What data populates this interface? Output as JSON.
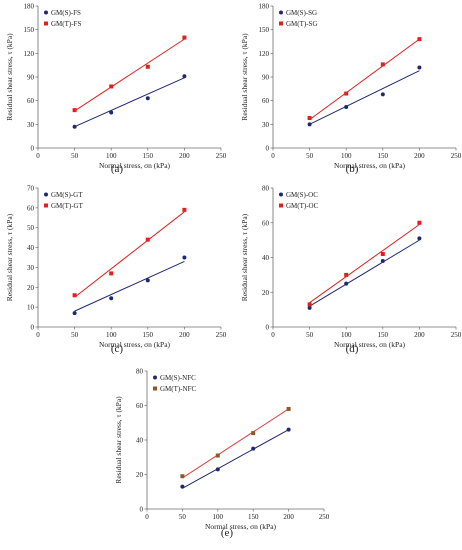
{
  "colors": {
    "gm_s": "#1f2a6e",
    "gm_t": "#e02020",
    "gm_t_nfc": "#8b5a2b",
    "nfc_line": "#e04040",
    "axis": "#6b6b6b"
  },
  "chart_data": [
    {
      "type": "scatter",
      "panel_label": "(a)",
      "xlabel": "Normal stress,  σn (kPa)",
      "ylabel": "Residual shear stress,  τ (kPa)",
      "xlim": [
        0,
        250
      ],
      "ylim": [
        0,
        180
      ],
      "xticks": [
        "0",
        "50",
        "100",
        "150",
        "200",
        "250"
      ],
      "yticks": [
        "0",
        "30",
        "60",
        "90",
        "120",
        "150",
        "180"
      ],
      "legend_position": "top-left",
      "series": [
        {
          "name": "GM(S)-FS",
          "marker": "circle",
          "x": [
            50,
            100,
            150,
            200
          ],
          "y": [
            27,
            45,
            63,
            91
          ],
          "fit": [
            [
              50,
              27
            ],
            [
              200,
              89
            ]
          ]
        },
        {
          "name": "GM(T)-FS",
          "marker": "square",
          "x": [
            50,
            100,
            150,
            200
          ],
          "y": [
            48,
            78,
            103,
            140
          ],
          "fit": [
            [
              50,
              47
            ],
            [
              200,
              138
            ]
          ]
        }
      ]
    },
    {
      "type": "scatter",
      "panel_label": "(b)",
      "xlabel": "Normal stress,  σn (kPa)",
      "ylabel": "Residual shear stress,  τ (kPa)",
      "xlim": [
        0,
        250
      ],
      "ylim": [
        0,
        180
      ],
      "xticks": [
        "0",
        "50",
        "100",
        "150",
        "200",
        "250"
      ],
      "yticks": [
        "0",
        "30",
        "60",
        "90",
        "120",
        "150",
        "180"
      ],
      "legend_position": "top-left",
      "series": [
        {
          "name": "GM(S)-SG",
          "marker": "circle",
          "x": [
            50,
            100,
            150,
            200
          ],
          "y": [
            30,
            52,
            68,
            102
          ],
          "fit": [
            [
              50,
              30
            ],
            [
              200,
              98
            ]
          ]
        },
        {
          "name": "GM(T)-SG",
          "marker": "square",
          "x": [
            50,
            100,
            150,
            200
          ],
          "y": [
            38,
            69,
            106,
            138
          ],
          "fit": [
            [
              50,
              36
            ],
            [
              200,
              138
            ]
          ]
        }
      ]
    },
    {
      "type": "scatter",
      "panel_label": "(c)",
      "xlabel": "Normal stress,  σn (kPa)",
      "ylabel": "Residual shear stress,  τ (kPa)",
      "xlim": [
        0,
        250
      ],
      "ylim": [
        0,
        70
      ],
      "xticks": [
        "0",
        "50",
        "100",
        "150",
        "200",
        "250"
      ],
      "yticks": [
        "0",
        "10",
        "20",
        "30",
        "40",
        "50",
        "60",
        "70"
      ],
      "legend_position": "top-left",
      "series": [
        {
          "name": "GM(S)-GT",
          "marker": "circle",
          "x": [
            50,
            100,
            150,
            200
          ],
          "y": [
            7,
            14.5,
            23.5,
            35
          ],
          "fit": [
            [
              50,
              8
            ],
            [
              200,
              33
            ]
          ]
        },
        {
          "name": "GM(T)-GT",
          "marker": "square",
          "x": [
            50,
            100,
            150,
            200
          ],
          "y": [
            16,
            27,
            44,
            59
          ],
          "fit": [
            [
              50,
              15
            ],
            [
              200,
              58
            ]
          ]
        }
      ]
    },
    {
      "type": "scatter",
      "panel_label": "(d)",
      "xlabel": "Normal stress,  σn (kPa)",
      "ylabel": "Residual shear stress,  τ (kPa)",
      "xlim": [
        0,
        250
      ],
      "ylim": [
        0,
        80
      ],
      "xticks": [
        "0",
        "50",
        "100",
        "150",
        "200",
        "250"
      ],
      "yticks": [
        "0",
        "20",
        "40",
        "60",
        "80"
      ],
      "legend_position": "top-left",
      "series": [
        {
          "name": "GM(S)-OC",
          "marker": "circle",
          "x": [
            50,
            100,
            150,
            200
          ],
          "y": [
            11,
            25,
            38,
            51
          ],
          "fit": [
            [
              50,
              12
            ],
            [
              200,
              50
            ]
          ]
        },
        {
          "name": "GM(T)-OC",
          "marker": "square",
          "x": [
            50,
            100,
            150,
            200
          ],
          "y": [
            13,
            30,
            42,
            60
          ],
          "fit": [
            [
              50,
              14
            ],
            [
              200,
              59
            ]
          ]
        }
      ]
    },
    {
      "type": "scatter",
      "panel_label": "(e)",
      "xlabel": "Normal stress,  σn (kPa)",
      "ylabel": "Residual shear stress,  τ (kPa)",
      "xlim": [
        0,
        250
      ],
      "ylim": [
        0,
        80
      ],
      "xticks": [
        "0",
        "50",
        "100",
        "150",
        "200",
        "250"
      ],
      "yticks": [
        "0",
        "20",
        "40",
        "60",
        "80"
      ],
      "legend_position": "top-left",
      "series": [
        {
          "name": "GM(S)-NFC",
          "marker": "circle",
          "x": [
            50,
            100,
            150,
            200
          ],
          "y": [
            13,
            23,
            35,
            46
          ],
          "fit": [
            [
              50,
              12
            ],
            [
              200,
              46
            ]
          ]
        },
        {
          "name": "GM(T)-NFC",
          "marker": "square",
          "x": [
            50,
            100,
            150,
            200
          ],
          "y": [
            19,
            31,
            44,
            58
          ],
          "fit": [
            [
              50,
              18
            ],
            [
              200,
              58
            ]
          ]
        }
      ]
    }
  ]
}
